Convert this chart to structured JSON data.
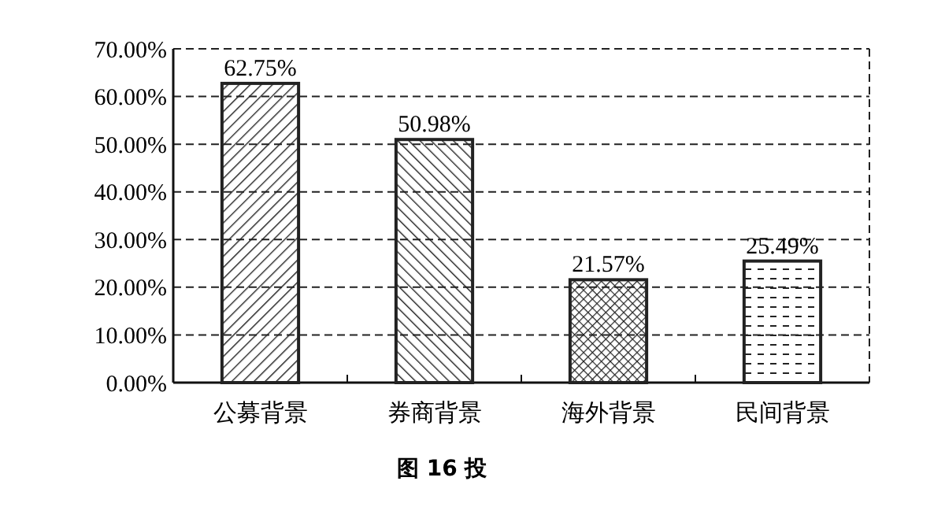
{
  "chart_data": {
    "type": "bar",
    "title": "图 16 投",
    "categories": [
      "公募背景",
      "券商背景",
      "海外背景",
      "民间背景"
    ],
    "values": [
      62.75,
      50.98,
      21.57,
      25.49
    ],
    "value_labels": [
      "62.75%",
      "50.98%",
      "21.57%",
      "25.49%"
    ],
    "colors": [
      "#222222",
      "#222222",
      "#222222",
      "#222222"
    ],
    "ylim": [
      0,
      70
    ],
    "yticks": [
      {
        "value": 0,
        "label": "0.00%"
      },
      {
        "value": 10,
        "label": "10.00%"
      },
      {
        "value": 20,
        "label": "20.00%"
      },
      {
        "value": 30,
        "label": "30.00%"
      },
      {
        "value": 40,
        "label": "40.00%"
      },
      {
        "value": 50,
        "label": "50.00%"
      },
      {
        "value": 60,
        "label": "60.00%"
      },
      {
        "value": 70,
        "label": "70.00%"
      }
    ],
    "grid": "y"
  }
}
